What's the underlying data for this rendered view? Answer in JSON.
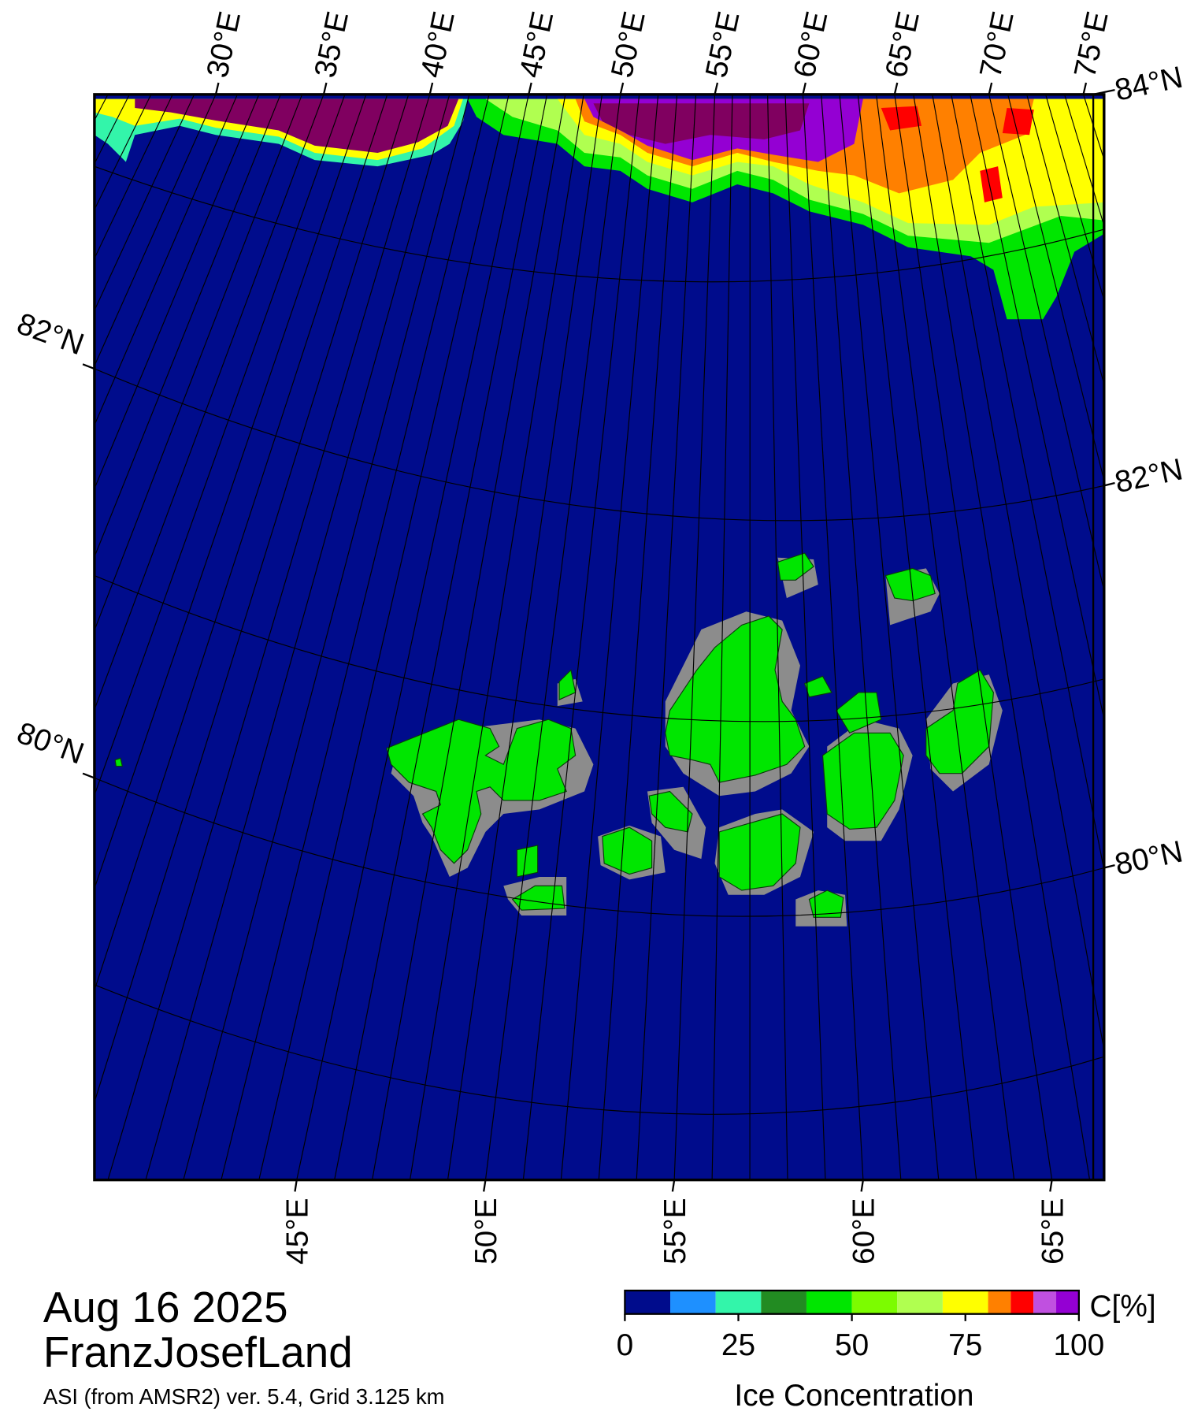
{
  "map": {
    "date": "Aug 16 2025",
    "region": "FranzJosefLand",
    "source": "ASI (from AMSR2) ver. 5.4,  Grid 3.125 km",
    "top_lon_labels": [
      "30°E",
      "35°E",
      "40°E",
      "45°E",
      "50°E",
      "55°E",
      "60°E",
      "65°E",
      "70°E",
      "75°E"
    ],
    "bottom_lon_labels": [
      "45°E",
      "50°E",
      "55°E",
      "60°E",
      "65°E"
    ],
    "left_lat_labels": [
      "82°N",
      "80°N"
    ],
    "right_lat_labels": [
      "84°N",
      "82°N",
      "80°N"
    ]
  },
  "colorbar": {
    "unit": "C[%]",
    "label": "Ice Concentration",
    "lim": [
      0,
      100
    ],
    "ticks": [
      0,
      25,
      50,
      75,
      100
    ],
    "bounds": [
      0,
      10,
      20,
      30,
      40,
      50,
      60,
      70,
      80,
      85,
      90,
      95,
      100
    ],
    "colors": [
      "#000c8c",
      "#1e90ff",
      "#33f5aa",
      "#228b22",
      "#00e600",
      "#7cfc00",
      "#b0ff50",
      "#ffff00",
      "#ff8000",
      "#ff0000",
      "#c050e0",
      "#9400d3"
    ]
  }
}
